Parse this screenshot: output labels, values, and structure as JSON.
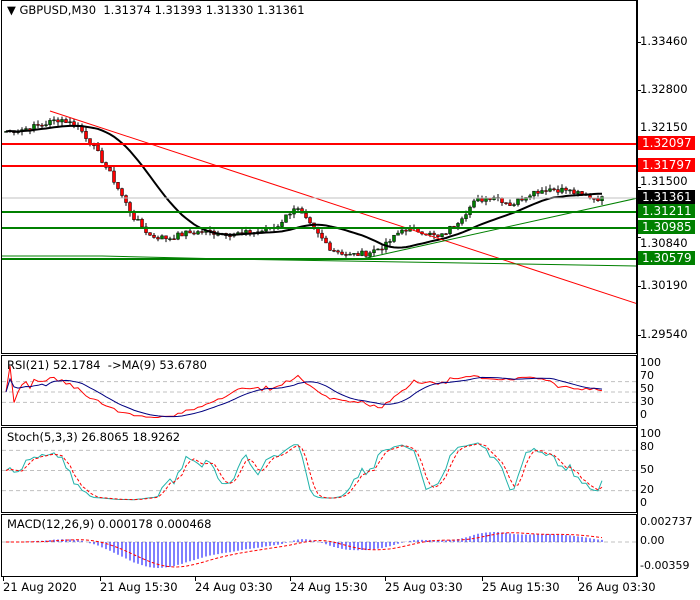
{
  "header": {
    "symbol": "GBPUSD,M30",
    "open": "1.31374",
    "high": "1.31393",
    "low": "1.31330",
    "close": "1.31361"
  },
  "price_axis": [
    "1.33460",
    "1.32800",
    "1.32150",
    "1.31500",
    "1.30840",
    "1.30190",
    "1.29540"
  ],
  "levels": [
    {
      "price": "1.32097",
      "color": "#ff0000"
    },
    {
      "price": "1.31797",
      "color": "#ff0000"
    },
    {
      "price": "1.31361",
      "color": "#000000"
    },
    {
      "price": "1.31211",
      "color": "#008000"
    },
    {
      "price": "1.30985",
      "color": "#008000"
    },
    {
      "price": "1.30579",
      "color": "#008000"
    }
  ],
  "price_path": [
    1.3227,
    1.323,
    1.3236,
    1.3244,
    1.3234,
    1.3201,
    1.316,
    1.3113,
    1.3086,
    1.3083,
    1.309,
    1.3092,
    1.309,
    1.3089,
    1.3092,
    1.3099,
    1.3126,
    1.3095,
    1.3069,
    1.306,
    1.3063,
    1.3073,
    1.3096,
    1.3093,
    1.3083,
    1.3106,
    1.3133,
    1.314,
    1.3128,
    1.3144,
    1.315,
    1.3148,
    1.314,
    1.3136
  ],
  "rsi": {
    "label": "RSI(21) 52.1784  ->MA(9) 53.6780",
    "axis": [
      "100",
      "70",
      "50",
      "30",
      "0"
    ]
  },
  "stoch": {
    "label": "Stoch(5,3,3) 26.8065 18.9262",
    "axis": [
      "100",
      "80",
      "50",
      "20",
      "0"
    ]
  },
  "macd": {
    "label": "MACD(12,26,9) 0.000178 0.000468",
    "axis": [
      "0.002737",
      "0.00",
      "-0.00359"
    ]
  },
  "time_axis": [
    "21 Aug 2020",
    "21 Aug 15:30",
    "24 Aug 03:30",
    "24 Aug 15:30",
    "25 Aug 03:30",
    "25 Aug 15:30",
    "26 Aug 03:30"
  ],
  "colors": {
    "bull": "#008000",
    "bear": "#ff0000",
    "ma": "#000000",
    "signal": "#ff0000",
    "rsi_ma": "#000080",
    "stoch_main": "#20b2aa",
    "macd_hist": "#0000ff"
  }
}
